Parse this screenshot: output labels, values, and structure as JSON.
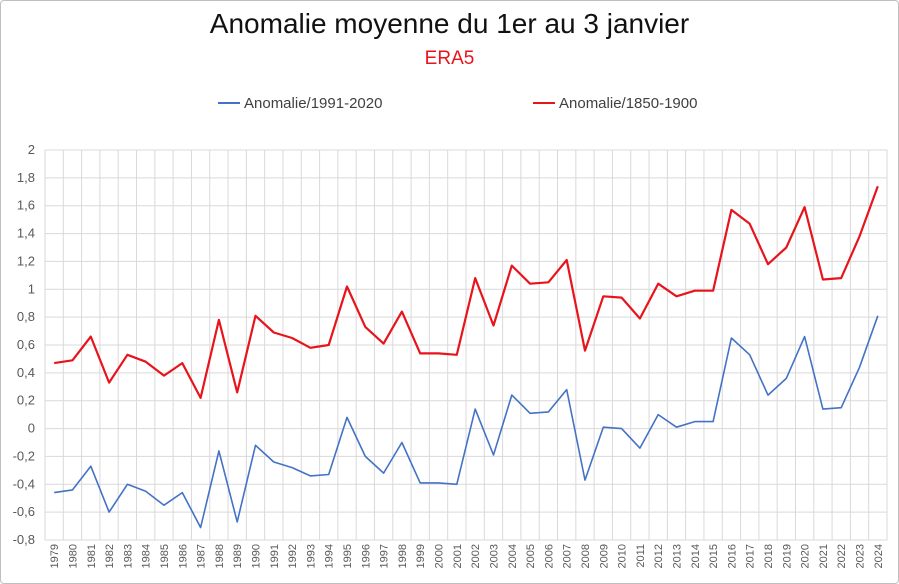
{
  "chart_data": {
    "type": "line",
    "title": "Anomalie moyenne du 1er au 3 janvier",
    "subtitle": "ERA5",
    "xlabel": "",
    "ylabel": "",
    "ylim": [
      -0.8,
      2
    ],
    "yticks": [
      "2",
      "1,8",
      "1,6",
      "1,4",
      "1,2",
      "1",
      "0,8",
      "0,6",
      "0,4",
      "0,2",
      "0",
      "-0,2",
      "-0,4",
      "-0,6",
      "-0,8"
    ],
    "grid": true,
    "legend_position": "top",
    "x": [
      "1979",
      "1980",
      "1981",
      "1982",
      "1983",
      "1984",
      "1985",
      "1986",
      "1987",
      "1988",
      "1989",
      "1990",
      "1991",
      "1992",
      "1993",
      "1994",
      "1995",
      "1996",
      "1997",
      "1998",
      "1999",
      "2000",
      "2001",
      "2002",
      "2003",
      "2004",
      "2005",
      "2006",
      "2007",
      "2008",
      "2009",
      "2010",
      "2011",
      "2012",
      "2013",
      "2014",
      "2015",
      "2016",
      "2017",
      "2018",
      "2019",
      "2020",
      "2021",
      "2022",
      "2023",
      "2024"
    ],
    "series": [
      {
        "name": "Anomalie/1991-2020",
        "color": "#4472c4",
        "values": [
          -0.46,
          -0.44,
          -0.27,
          -0.6,
          -0.4,
          -0.45,
          -0.55,
          -0.46,
          -0.71,
          -0.16,
          -0.67,
          -0.12,
          -0.24,
          -0.28,
          -0.34,
          -0.33,
          0.08,
          -0.2,
          -0.32,
          -0.1,
          -0.39,
          -0.39,
          -0.4,
          0.14,
          -0.19,
          0.24,
          0.11,
          0.12,
          0.28,
          -0.37,
          0.01,
          0.0,
          -0.14,
          0.1,
          0.01,
          0.05,
          0.05,
          0.65,
          0.53,
          0.24,
          0.36,
          0.66,
          0.14,
          0.15,
          0.44,
          0.81
        ]
      },
      {
        "name": "Anomalie/1850-1900",
        "color": "#e8141c",
        "values": [
          0.47,
          0.49,
          0.66,
          0.33,
          0.53,
          0.48,
          0.38,
          0.47,
          0.22,
          0.78,
          0.26,
          0.81,
          0.69,
          0.65,
          0.58,
          0.6,
          1.02,
          0.73,
          0.61,
          0.84,
          0.54,
          0.54,
          0.53,
          1.08,
          0.74,
          1.17,
          1.04,
          1.05,
          1.21,
          0.56,
          0.95,
          0.94,
          0.79,
          1.04,
          0.95,
          0.99,
          0.99,
          1.57,
          1.47,
          1.18,
          1.3,
          1.59,
          1.07,
          1.08,
          1.38,
          1.74
        ]
      }
    ]
  }
}
